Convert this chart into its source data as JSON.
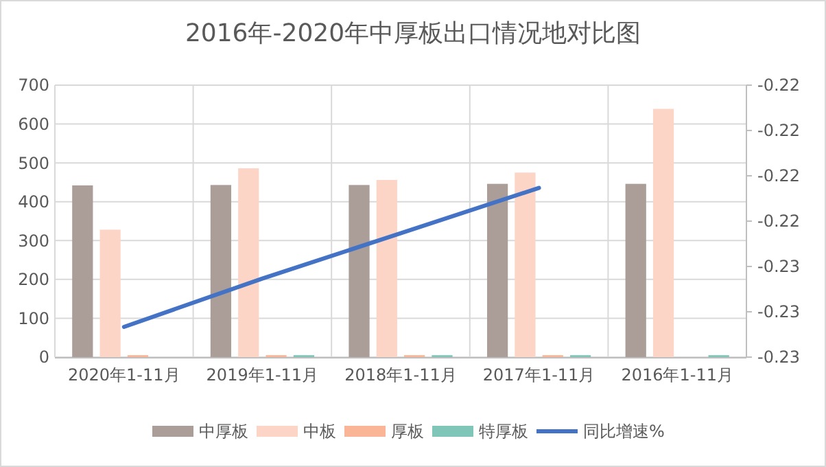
{
  "chart_data": {
    "type": "bar",
    "title": "2016年-2020年中厚板出口情况地对比图",
    "categories": [
      "2020年1-11月",
      "2019年1-11月",
      "2018年1-11月",
      "2017年1-11月",
      "2016年1-11月"
    ],
    "series": [
      {
        "name": "中厚板",
        "color": "#ab9d97",
        "values": [
          442,
          443,
          443,
          446,
          446
        ]
      },
      {
        "name": "中板",
        "color": "#fdd5c6",
        "values": [
          328,
          486,
          456,
          475,
          639
        ]
      },
      {
        "name": "厚板",
        "color": "#f9b596",
        "values": [
          5,
          5,
          5,
          5,
          null
        ]
      },
      {
        "name": "特厚板",
        "color": "#7fc6b9",
        "values": [
          null,
          5,
          5,
          5,
          5
        ]
      },
      {
        "name": "同比增速%",
        "type": "line",
        "axis": "y2",
        "color": "#4472c4",
        "values": [
          -0.228,
          -0.2264,
          -0.2249,
          -0.2234,
          null
        ]
      }
    ],
    "ylim": [
      0,
      700
    ],
    "yticks": [
      0,
      100,
      200,
      300,
      400,
      500,
      600,
      700
    ],
    "y2lim": [
      -0.229,
      -0.22
    ],
    "y2ticks": [
      {
        "value": -0.229,
        "label": "-0.23"
      },
      {
        "value": -0.2275,
        "label": "-0.23"
      },
      {
        "value": -0.226,
        "label": "-0.23"
      },
      {
        "value": -0.2245,
        "label": "-0.22"
      },
      {
        "value": -0.223,
        "label": "-0.22"
      },
      {
        "value": -0.2215,
        "label": "-0.22"
      },
      {
        "value": -0.22,
        "label": "-0.22"
      }
    ],
    "grid": true,
    "legend": "bottom"
  }
}
